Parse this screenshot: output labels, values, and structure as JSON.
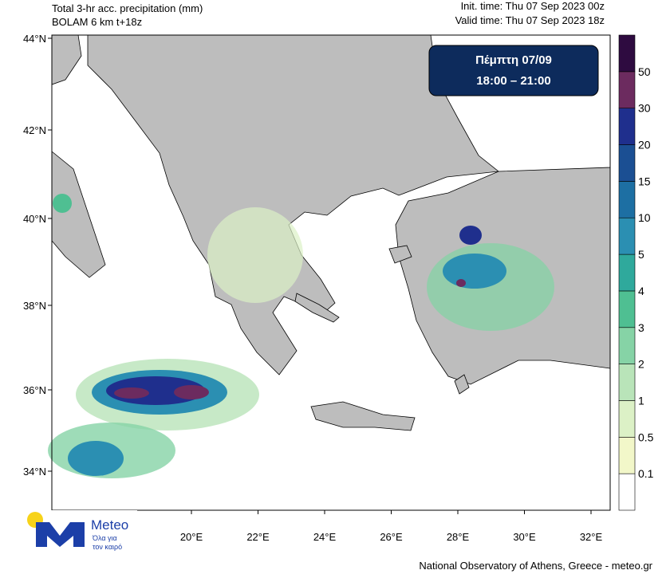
{
  "header": {
    "title": "Total 3-hr acc. precipitation (mm)",
    "model": "BOLAM 6 km t+18z",
    "init_time": "Init. time: Thu 07 Sep 2023 00z",
    "valid_time": "Valid time: Thu 07 Sep 2023 18z"
  },
  "badge": {
    "day": "Πέμπτη 07/09",
    "hours": "18:00 – 21:00"
  },
  "lat_labels": [
    "44°N",
    "42°N",
    "40°N",
    "38°N",
    "36°N",
    "34°N"
  ],
  "lon_labels": [
    "20°E",
    "22°E",
    "24°E",
    "26°E",
    "28°E",
    "30°E",
    "32°E"
  ],
  "colorbar": {
    "labels": [
      "0.1",
      "0.5",
      "1",
      "2",
      "3",
      "4",
      "5",
      "10",
      "15",
      "20",
      "30",
      "50"
    ],
    "colors": [
      "#ffffff",
      "#f2f7c9",
      "#dcf1c6",
      "#b9e4b9",
      "#86d3a6",
      "#4fbf92",
      "#2fa99c",
      "#2b8fb2",
      "#1d6fa3",
      "#1b4f93",
      "#1f2f8d",
      "#6c2b5f",
      "#2e0b40"
    ]
  },
  "logo": {
    "name": "Meteo",
    "tagline_1": "Όλα για",
    "tagline_2": "τον καιρό"
  },
  "footer": "National Observatory of Athens, Greece - meteo.gr"
}
